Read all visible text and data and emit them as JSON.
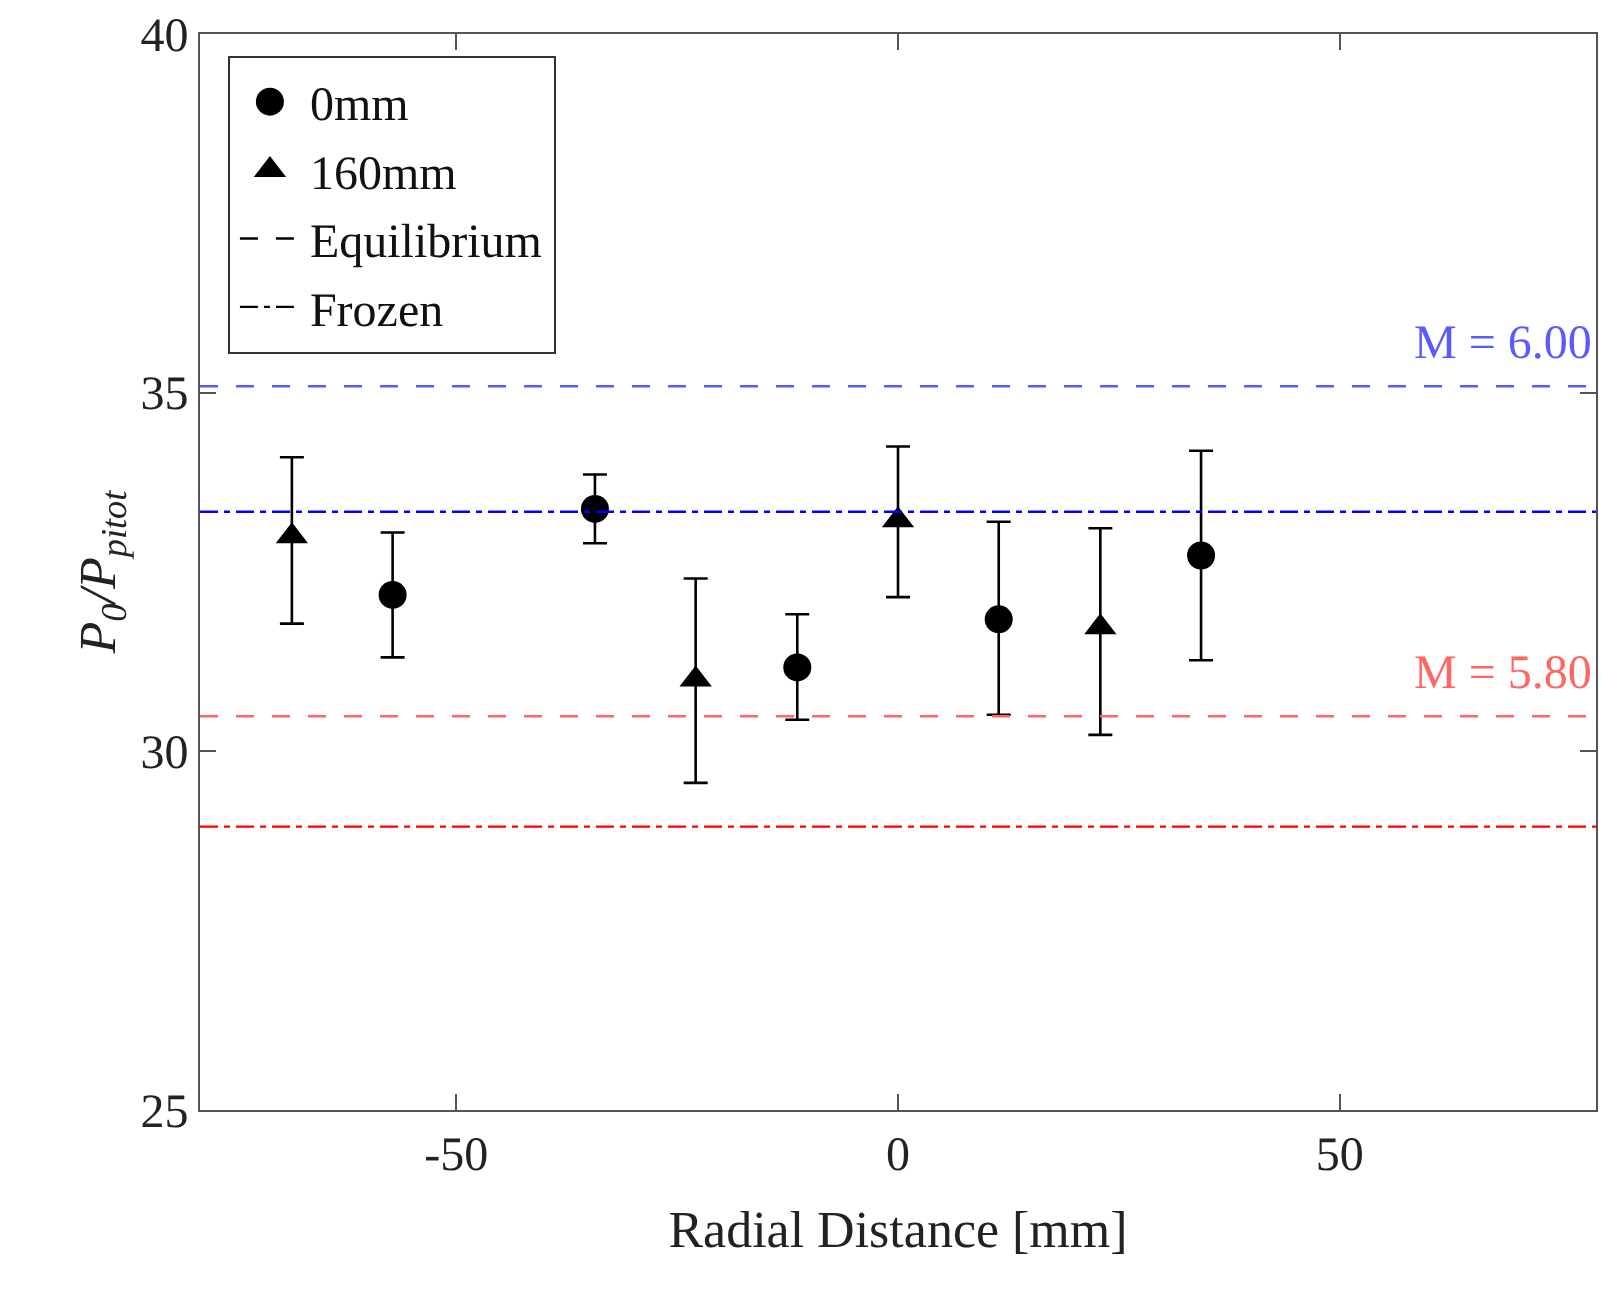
{
  "chart_data": {
    "type": "scatter",
    "xlabel": "Radial Distance [mm]",
    "ylabel": "P$_{0}$/P$_{pitot}$",
    "xlim": [
      -79,
      79
    ],
    "xticks": [
      -50,
      0,
      50
    ],
    "ylim": [
      25,
      40
    ],
    "yticks": [
      25,
      30,
      35,
      40
    ],
    "legend": "top left",
    "series": [
      {
        "name": "0mm",
        "color": "#000000",
        "marker": "circle",
        "x": [
          -57.2,
          -34.3,
          -11.4,
          11.4,
          34.3
        ],
        "values": [
          32.18,
          33.38,
          31.17,
          31.84,
          32.73
        ],
        "errors": [
          [
            31.31,
            33.05
          ],
          [
            32.9,
            33.86
          ],
          [
            30.44,
            31.91
          ],
          [
            30.51,
            33.2
          ],
          [
            31.27,
            34.19
          ]
        ]
      },
      {
        "name": "160mm",
        "color": "#000000",
        "marker": "triangle",
        "x": [
          -68.6,
          -22.9,
          0,
          22.9
        ],
        "values": [
          33.0,
          31.0,
          33.22,
          31.73
        ],
        "errors": [
          [
            31.78,
            34.1
          ],
          [
            29.56,
            32.41
          ],
          [
            32.15,
            34.25
          ],
          [
            30.23,
            33.11
          ]
        ]
      },
      {
        "name": "Equilibrium",
        "type": "line",
        "color": "#000000",
        "line_style": "dashed"
      },
      {
        "name": "Frozen",
        "type": "line",
        "color": "#000000",
        "line_style": "dashdot"
      }
    ],
    "ref_lines": [
      {
        "axis": "y",
        "value": 35.09,
        "color": "#5a5aff",
        "line_style": "dashed"
      },
      {
        "axis": "y",
        "value": 33.34,
        "color": "#0000ff",
        "line_style": "dashdot"
      },
      {
        "axis": "y",
        "value": 30.49,
        "color": "#ff6666",
        "line_style": "dashed"
      },
      {
        "axis": "y",
        "value": 28.95,
        "color": "#ff0000",
        "line_style": "dashdot"
      }
    ],
    "annotations": [
      {
        "text": "M = 6.00",
        "x": 79,
        "y": 35.09
      },
      {
        "text": "M = 5.80",
        "x": 79,
        "y": 30.49
      }
    ]
  }
}
